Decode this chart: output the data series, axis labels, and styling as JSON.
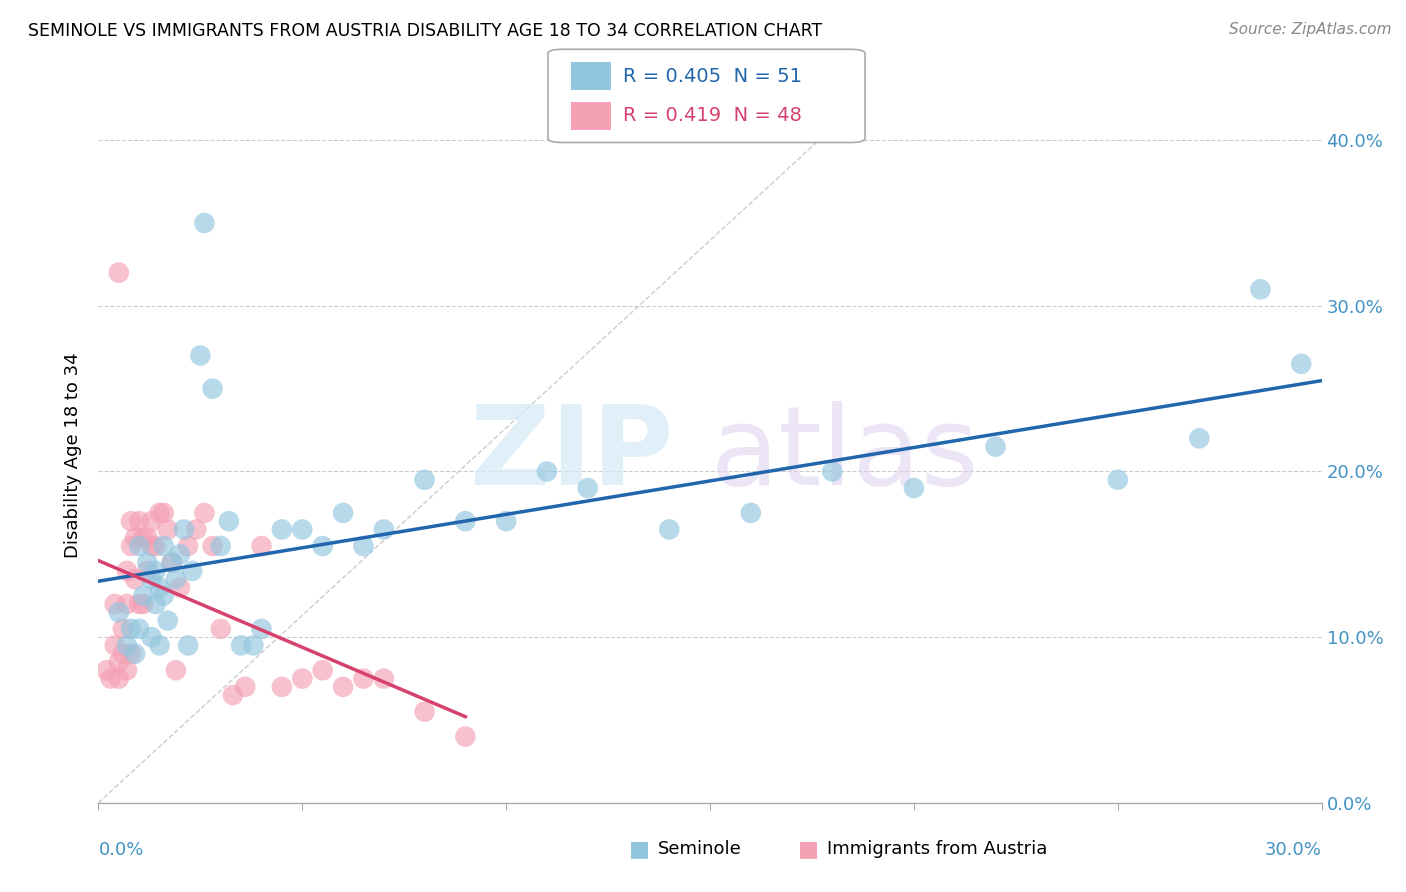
{
  "title": "SEMINOLE VS IMMIGRANTS FROM AUSTRIA DISABILITY AGE 18 TO 34 CORRELATION CHART",
  "source": "Source: ZipAtlas.com",
  "ylabel": "Disability Age 18 to 34",
  "legend1_r": "0.405",
  "legend1_n": "51",
  "legend2_r": "0.419",
  "legend2_n": "48",
  "series1_name": "Seminole",
  "series2_name": "Immigrants from Austria",
  "color_blue": "#92c5de",
  "color_pink": "#f4a0b5",
  "color_trend_blue": "#2166ac",
  "color_trend_pink": "#d6426e",
  "color_axis": "#4292c6",
  "xlim": [
    0,
    0.3
  ],
  "ylim": [
    0,
    0.42
  ],
  "ytick_values": [
    0.0,
    0.1,
    0.2,
    0.3,
    0.4
  ],
  "xtick_values": [
    0.0,
    0.05,
    0.1,
    0.15,
    0.2,
    0.25,
    0.3
  ],
  "seminole_x": [
    0.005,
    0.007,
    0.008,
    0.009,
    0.01,
    0.01,
    0.011,
    0.012,
    0.013,
    0.013,
    0.014,
    0.014,
    0.015,
    0.015,
    0.016,
    0.016,
    0.017,
    0.018,
    0.019,
    0.02,
    0.021,
    0.022,
    0.023,
    0.025,
    0.026,
    0.028,
    0.03,
    0.032,
    0.035,
    0.038,
    0.04,
    0.045,
    0.05,
    0.055,
    0.06,
    0.065,
    0.07,
    0.08,
    0.09,
    0.1,
    0.11,
    0.12,
    0.14,
    0.16,
    0.18,
    0.2,
    0.22,
    0.25,
    0.27,
    0.285,
    0.295
  ],
  "seminole_y": [
    0.115,
    0.095,
    0.105,
    0.09,
    0.105,
    0.155,
    0.125,
    0.145,
    0.1,
    0.135,
    0.12,
    0.14,
    0.095,
    0.13,
    0.125,
    0.155,
    0.11,
    0.145,
    0.135,
    0.15,
    0.165,
    0.095,
    0.14,
    0.27,
    0.35,
    0.25,
    0.155,
    0.17,
    0.095,
    0.095,
    0.105,
    0.165,
    0.165,
    0.155,
    0.175,
    0.155,
    0.165,
    0.195,
    0.17,
    0.17,
    0.2,
    0.19,
    0.165,
    0.175,
    0.2,
    0.19,
    0.215,
    0.195,
    0.22,
    0.31,
    0.265
  ],
  "austria_x": [
    0.002,
    0.003,
    0.004,
    0.004,
    0.005,
    0.005,
    0.005,
    0.006,
    0.006,
    0.007,
    0.007,
    0.007,
    0.008,
    0.008,
    0.008,
    0.009,
    0.009,
    0.01,
    0.01,
    0.011,
    0.011,
    0.012,
    0.012,
    0.013,
    0.013,
    0.014,
    0.015,
    0.016,
    0.017,
    0.018,
    0.019,
    0.02,
    0.022,
    0.024,
    0.026,
    0.028,
    0.03,
    0.033,
    0.036,
    0.04,
    0.045,
    0.05,
    0.055,
    0.06,
    0.065,
    0.07,
    0.08,
    0.09
  ],
  "austria_y": [
    0.08,
    0.075,
    0.095,
    0.12,
    0.075,
    0.085,
    0.32,
    0.09,
    0.105,
    0.12,
    0.14,
    0.08,
    0.09,
    0.155,
    0.17,
    0.135,
    0.16,
    0.12,
    0.17,
    0.12,
    0.16,
    0.14,
    0.16,
    0.17,
    0.155,
    0.155,
    0.175,
    0.175,
    0.165,
    0.145,
    0.08,
    0.13,
    0.155,
    0.165,
    0.175,
    0.155,
    0.105,
    0.065,
    0.07,
    0.155,
    0.07,
    0.075,
    0.08,
    0.07,
    0.075,
    0.075,
    0.055,
    0.04
  ]
}
